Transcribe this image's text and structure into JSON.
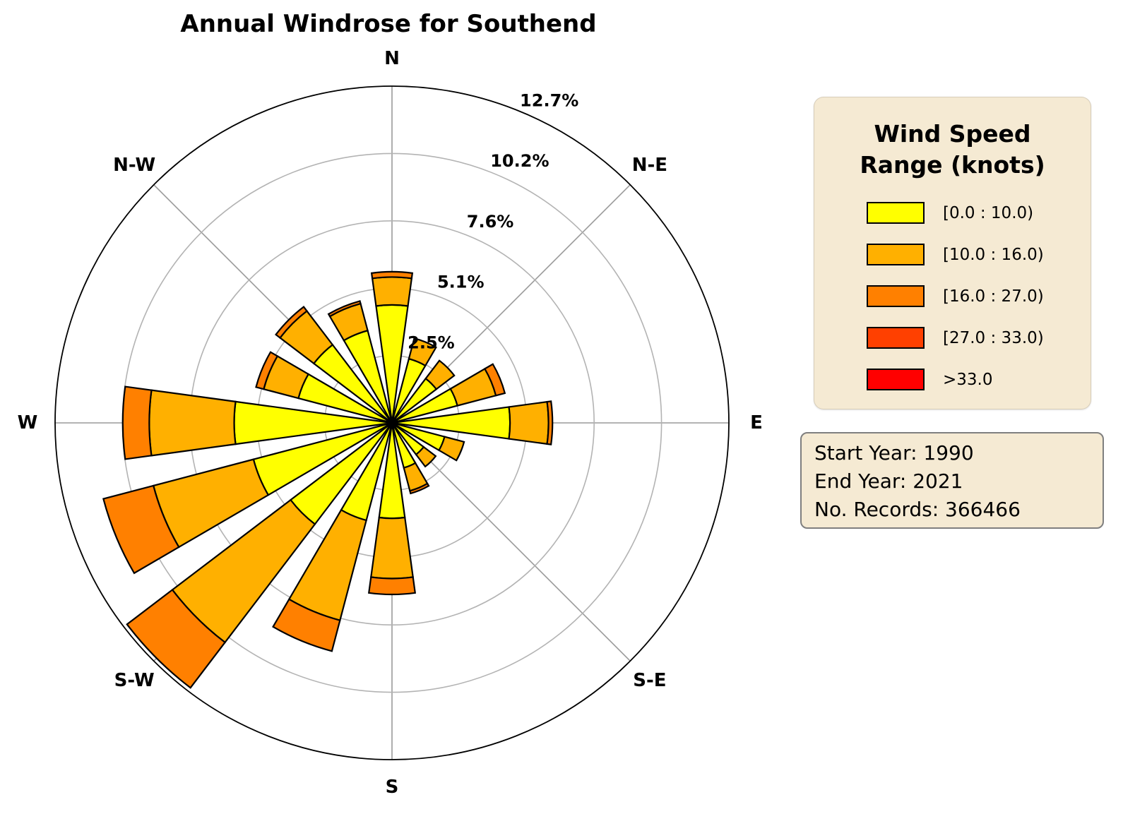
{
  "title": "Annual Windrose for Southend",
  "legend": {
    "title": "Wind Speed Range (knots)"
  },
  "info": {
    "lines": [
      "Start Year: 1990",
      "End Year: 2021",
      "No. Records: 366466"
    ],
    "start_year": "1990",
    "end_year": "2021",
    "num_records": "366466"
  },
  "colors": {
    "panel_bg": "#f5ead3",
    "ring_gray": "#b3b3b3",
    "spoke_gray": "#9a9a9a",
    "outer_ring": "#000000",
    "bar_edge": "#000000"
  },
  "chart_data": {
    "type": "bar",
    "subtype": "windrose-stacked-polar",
    "units": "percent of records",
    "title": "Annual Windrose for Southend",
    "compass_labels": [
      "N",
      "N-E",
      "E",
      "S-E",
      "S",
      "S-W",
      "W",
      "N-W"
    ],
    "ring_labels": [
      "2.5%",
      "5.1%",
      "7.6%",
      "10.2%",
      "12.7%"
    ],
    "ring_values": [
      2.54,
      5.08,
      7.62,
      10.16,
      12.7
    ],
    "rmax": 12.7,
    "grid": true,
    "legend_position": "right",
    "directions": [
      "N",
      "NNE",
      "NE",
      "ENE",
      "E",
      "ESE",
      "SE",
      "SSE",
      "S",
      "SSW",
      "SW",
      "WSW",
      "W",
      "WNW",
      "NW",
      "NNW"
    ],
    "speed_bins": [
      {
        "label": "[0.0 : 10.0)",
        "color": "#ffff00"
      },
      {
        "label": "[10.0 : 16.0)",
        "color": "#ffb000"
      },
      {
        "label": "[16.0 : 27.0)",
        "color": "#ff8000"
      },
      {
        "label": "[27.0 : 33.0)",
        "color": "#ff4000"
      },
      {
        "label": ">33.0",
        "color": "#ff0000"
      }
    ],
    "series": [
      {
        "name": "[0.0 : 10.0)",
        "values": [
          4.45,
          2.5,
          2.1,
          2.55,
          4.45,
          2.05,
          1.5,
          1.75,
          3.6,
          3.8,
          4.8,
          5.4,
          5.95,
          3.65,
          3.7,
          3.6
        ]
      },
      {
        "name": "[10.0 : 16.0)",
        "values": [
          1.05,
          0.8,
          0.85,
          1.5,
          1.45,
          0.76,
          0.57,
          0.9,
          2.27,
          3.9,
          5.6,
          3.9,
          3.2,
          1.35,
          1.6,
          1.05
        ]
      },
      {
        "name": "[16.0 : 27.0)",
        "values": [
          0.2,
          0.0,
          0.0,
          0.35,
          0.15,
          0.0,
          0.0,
          0.1,
          0.6,
          1.2,
          2.15,
          1.95,
          1.0,
          0.3,
          0.2,
          0.1
        ]
      },
      {
        "name": "[27.0 : 33.0)",
        "values": [
          0,
          0,
          0,
          0,
          0,
          0,
          0,
          0,
          0,
          0,
          0,
          0,
          0,
          0,
          0,
          0
        ]
      },
      {
        "name": ">33.0",
        "values": [
          0,
          0,
          0,
          0,
          0,
          0,
          0,
          0,
          0,
          0,
          0,
          0,
          0,
          0,
          0,
          0
        ]
      }
    ]
  }
}
